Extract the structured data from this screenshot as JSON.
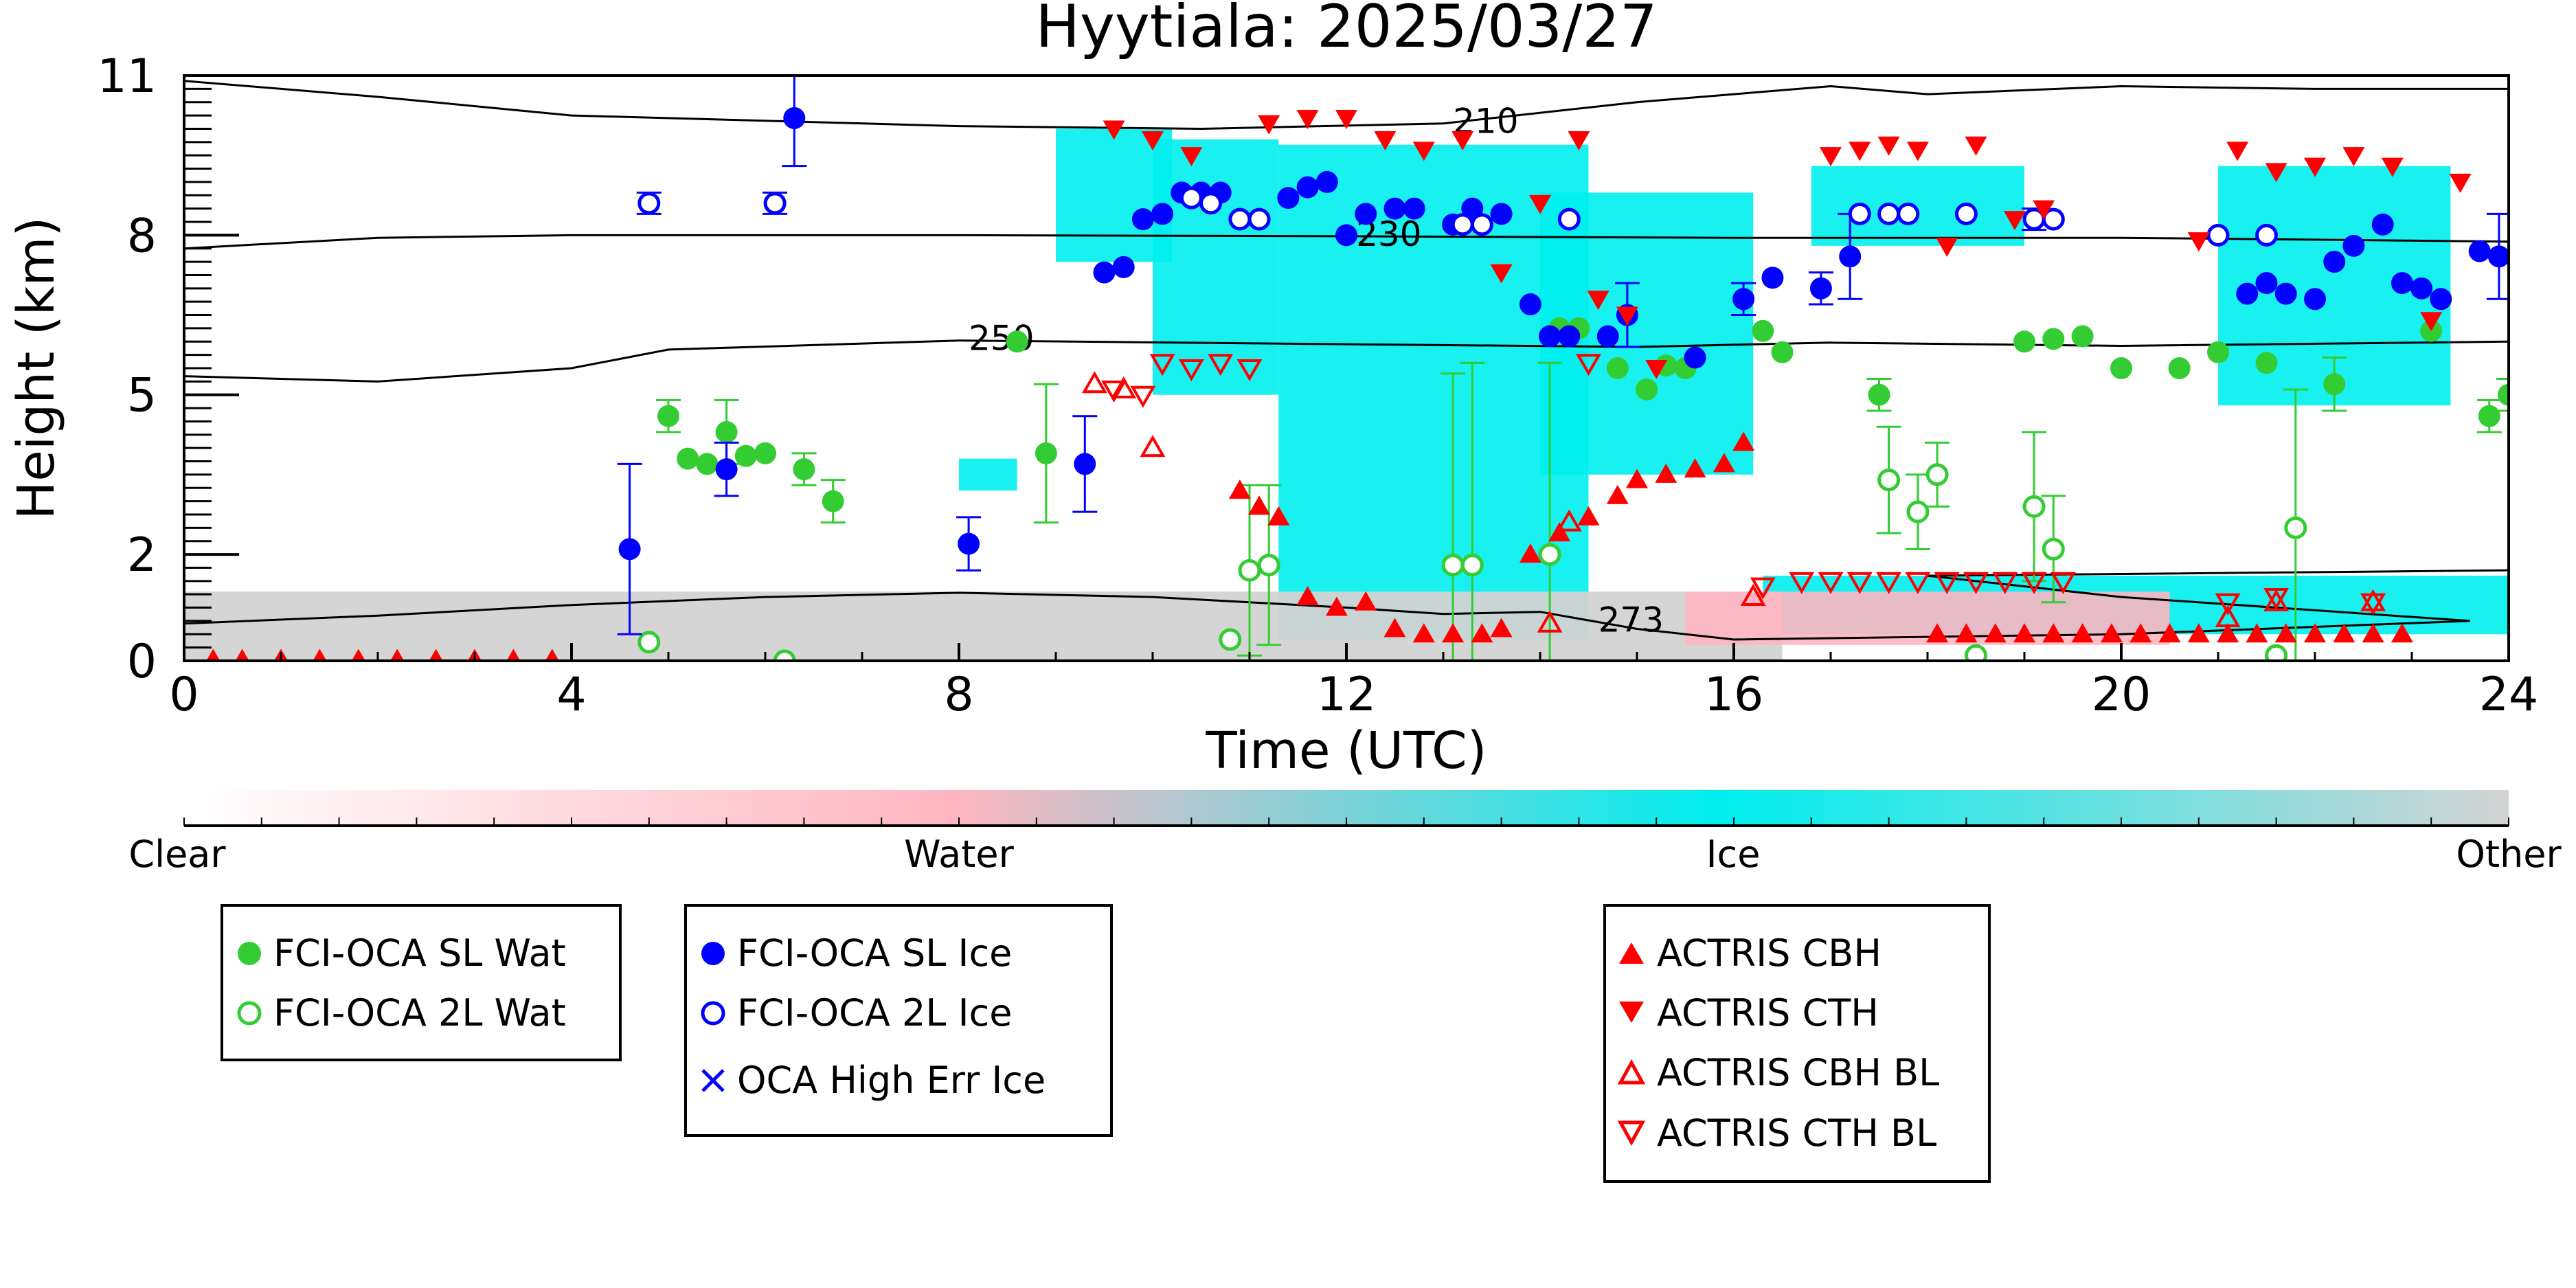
{
  "chart_data": {
    "type": "scatter",
    "title": "Hyytiala: 2025/03/27",
    "xlabel": "Time (UTC)",
    "ylabel": "Height (km)",
    "xlim": [
      0,
      24
    ],
    "ylim": [
      0,
      11
    ],
    "xticks": [
      0,
      4,
      8,
      12,
      16,
      20,
      24
    ],
    "yticks": [
      0,
      2,
      5,
      8,
      11
    ],
    "ytick_labels": [
      "0",
      "2",
      "5",
      "8",
      "11"
    ],
    "grid": false,
    "background_classes": {
      "categories": [
        "Clear",
        "Water",
        "Ice",
        "Other"
      ],
      "colors": {
        "Clear": "#ffffff",
        "Water": "#ffb6c1",
        "Ice": "#00eeee",
        "Other": "#d3d3d3"
      },
      "regions": [
        {
          "class": "Ice",
          "x": [
            9.0,
            10.2
          ],
          "y": [
            7.5,
            10.0
          ]
        },
        {
          "class": "Ice",
          "x": [
            10.0,
            11.3
          ],
          "y": [
            5.0,
            9.8
          ]
        },
        {
          "class": "Ice",
          "x": [
            11.3,
            14.5
          ],
          "y": [
            0.4,
            9.7
          ]
        },
        {
          "class": "Ice",
          "x": [
            14.0,
            16.2
          ],
          "y": [
            3.5,
            8.8
          ]
        },
        {
          "class": "Ice",
          "x": [
            16.8,
            19.0
          ],
          "y": [
            7.8,
            9.3
          ]
        },
        {
          "class": "Ice",
          "x": [
            21.0,
            23.4
          ],
          "y": [
            4.8,
            9.3
          ]
        },
        {
          "class": "Ice",
          "x": [
            16.3,
            24.0
          ],
          "y": [
            0.5,
            1.6
          ]
        },
        {
          "class": "Ice",
          "x": [
            8.0,
            8.6
          ],
          "y": [
            3.2,
            3.8
          ]
        },
        {
          "class": "Other",
          "x": [
            0.0,
            16.5
          ],
          "y": [
            0.0,
            1.3
          ]
        },
        {
          "class": "Water",
          "x": [
            15.5,
            20.5
          ],
          "y": [
            0.3,
            1.3
          ]
        }
      ]
    },
    "contours": [
      {
        "label": "210",
        "points": [
          [
            0,
            10.9
          ],
          [
            2,
            10.6
          ],
          [
            4,
            10.25
          ],
          [
            8,
            10.05
          ],
          [
            10.5,
            10.0
          ],
          [
            13,
            10.1
          ],
          [
            15,
            10.5
          ],
          [
            17,
            10.8
          ],
          [
            18,
            10.65
          ],
          [
            20,
            10.8
          ],
          [
            22,
            10.75
          ],
          [
            24,
            10.75
          ]
        ]
      },
      {
        "label": "230",
        "points": [
          [
            0,
            7.75
          ],
          [
            2,
            7.95
          ],
          [
            4,
            8.0
          ],
          [
            8,
            8.0
          ],
          [
            12,
            7.98
          ],
          [
            16,
            7.95
          ],
          [
            20,
            7.95
          ],
          [
            24,
            7.88
          ]
        ]
      },
      {
        "label": "250",
        "points": [
          [
            0,
            5.35
          ],
          [
            2,
            5.25
          ],
          [
            4,
            5.5
          ],
          [
            5,
            5.85
          ],
          [
            8,
            6.02
          ],
          [
            12,
            5.95
          ],
          [
            15,
            5.9
          ],
          [
            17,
            5.98
          ],
          [
            20,
            5.92
          ],
          [
            24,
            6.0
          ]
        ]
      },
      {
        "label": "273",
        "points": [
          [
            0,
            0.7
          ],
          [
            2,
            0.85
          ],
          [
            4,
            1.05
          ],
          [
            6,
            1.2
          ],
          [
            8,
            1.28
          ],
          [
            10,
            1.2
          ],
          [
            12,
            1.0
          ],
          [
            13,
            0.88
          ],
          [
            14,
            0.92
          ],
          [
            15,
            0.6
          ],
          [
            16,
            0.4
          ],
          [
            18,
            0.45
          ],
          [
            20,
            0.5
          ],
          [
            23.6,
            0.75
          ],
          [
            22,
            0.95
          ],
          [
            20,
            1.2
          ],
          [
            18,
            1.6
          ],
          [
            24,
            1.7
          ]
        ]
      }
    ],
    "series": [
      {
        "name": "FCI-OCA SL Wat",
        "marker": "circle-filled",
        "color": "#33cc33",
        "x": [
          5.0,
          5.2,
          5.4,
          5.6,
          5.8,
          6.0,
          6.4,
          6.7,
          8.6,
          8.9,
          14.2,
          14.4,
          14.8,
          15.1,
          15.3,
          15.5,
          16.3,
          16.5,
          17.5,
          19.0,
          19.3,
          19.6,
          20.0,
          20.6,
          21.0,
          21.5,
          22.2,
          23.2,
          23.8,
          24.0
        ],
        "y": [
          4.6,
          3.8,
          3.7,
          4.3,
          3.85,
          3.9,
          3.6,
          3.0,
          6.0,
          3.9,
          6.25,
          6.25,
          5.5,
          5.1,
          5.55,
          5.5,
          6.2,
          5.8,
          5.0,
          6.0,
          6.05,
          6.1,
          5.5,
          5.5,
          5.8,
          5.6,
          5.2,
          6.2,
          4.6,
          5.0
        ],
        "yerr": [
          0.3,
          0.0,
          0.0,
          0.6,
          0.0,
          0.0,
          0.3,
          0.4,
          0.0,
          1.3,
          0.0,
          0.0,
          0.0,
          0.0,
          0.0,
          0.0,
          0.0,
          0.0,
          0.3,
          0.0,
          0.0,
          0.0,
          0.0,
          0.0,
          0.0,
          0.0,
          0.5,
          0.0,
          0.3,
          0.3
        ]
      },
      {
        "name": "FCI-OCA 2L Wat",
        "marker": "circle-open",
        "color": "#33cc33",
        "x": [
          4.8,
          6.2,
          10.8,
          11.0,
          11.2,
          13.1,
          13.3,
          14.1,
          17.6,
          17.9,
          18.1,
          18.5,
          19.1,
          19.3,
          21.6,
          21.8
        ],
        "y": [
          0.35,
          0.0,
          0.4,
          1.7,
          1.8,
          1.8,
          1.8,
          2.0,
          3.4,
          2.8,
          3.5,
          0.1,
          2.9,
          2.1,
          0.1,
          2.5
        ],
        "yerr": [
          0.0,
          0.0,
          0.0,
          1.6,
          1.5,
          3.6,
          3.8,
          3.6,
          1.0,
          0.7,
          0.6,
          0.0,
          1.4,
          1.0,
          0.0,
          2.6
        ]
      },
      {
        "name": "FCI-OCA SL Ice",
        "marker": "circle-filled",
        "color": "#0000ff",
        "x": [
          4.6,
          5.6,
          6.3,
          8.1,
          9.3,
          9.5,
          9.7,
          9.9,
          10.1,
          10.3,
          10.5,
          10.7,
          11.4,
          11.6,
          11.8,
          12.0,
          12.2,
          12.5,
          12.7,
          13.1,
          13.3,
          13.6,
          13.9,
          14.1,
          14.3,
          14.7,
          14.9,
          15.6,
          16.1,
          16.4,
          16.9,
          17.2,
          21.3,
          21.5,
          21.7,
          22.0,
          22.2,
          22.4,
          22.7,
          22.9,
          23.1,
          23.3,
          23.7,
          23.9
        ],
        "y": [
          2.1,
          3.6,
          10.2,
          2.2,
          3.7,
          7.3,
          7.4,
          8.3,
          8.4,
          8.8,
          8.8,
          8.8,
          8.7,
          8.9,
          9.0,
          8.0,
          8.4,
          8.5,
          8.5,
          8.2,
          8.5,
          8.4,
          6.7,
          6.1,
          6.1,
          6.1,
          6.5,
          5.7,
          6.8,
          7.2,
          7.0,
          7.6,
          6.9,
          7.1,
          6.9,
          6.8,
          7.5,
          7.8,
          8.2,
          7.1,
          7.0,
          6.8,
          7.7,
          7.6
        ],
        "yerr": [
          1.6,
          0.5,
          0.9,
          0.5,
          0.9,
          0.0,
          0.0,
          0.0,
          0.0,
          0.0,
          0.0,
          0.0,
          0.0,
          0.0,
          0.0,
          0.0,
          0.0,
          0.0,
          0.0,
          0.0,
          0.0,
          0.0,
          0.0,
          0.0,
          0.0,
          0.0,
          0.6,
          0.0,
          0.3,
          0.0,
          0.3,
          0.8,
          0.0,
          0.0,
          0.0,
          0.0,
          0.0,
          0.0,
          0.0,
          0.0,
          0.0,
          0.0,
          0.0,
          0.8
        ]
      },
      {
        "name": "FCI-OCA 2L Ice",
        "marker": "circle-open",
        "color": "#0000ff",
        "x": [
          4.8,
          6.1,
          10.4,
          10.6,
          10.9,
          11.1,
          13.2,
          13.4,
          14.3,
          17.3,
          17.6,
          17.8,
          18.4,
          19.1,
          19.3,
          21.0,
          21.5
        ],
        "y": [
          8.6,
          8.6,
          8.7,
          8.6,
          8.3,
          8.3,
          8.2,
          8.2,
          8.3,
          8.4,
          8.4,
          8.4,
          8.4,
          8.3,
          8.3,
          8.0,
          8.0
        ],
        "yerr": [
          0.2,
          0.2,
          0.0,
          0.0,
          0.0,
          0.0,
          0.0,
          0.0,
          0.0,
          0.0,
          0.0,
          0.0,
          0.0,
          0.2,
          0.0,
          0.0,
          0.0
        ]
      },
      {
        "name": "OCA High Err Ice",
        "marker": "x",
        "color": "#0000ff",
        "x": [],
        "y": []
      },
      {
        "name": "ACTRIS CBH",
        "marker": "triangle-up-filled",
        "color": "#ff0000",
        "x": [
          0.3,
          0.6,
          1.0,
          1.4,
          1.8,
          2.2,
          2.6,
          3.0,
          3.4,
          3.8,
          10.9,
          11.1,
          11.3,
          11.6,
          11.9,
          12.2,
          12.5,
          12.8,
          13.1,
          13.4,
          13.6,
          13.9,
          14.2,
          14.5,
          14.8,
          15.0,
          15.3,
          15.6,
          15.9,
          16.1,
          18.1,
          18.4,
          18.7,
          19.0,
          19.3,
          19.6,
          19.9,
          20.2,
          20.5,
          20.8,
          21.1,
          21.4,
          21.7,
          22.0,
          22.3,
          22.6,
          22.9
        ],
        "y": [
          0.02,
          0.02,
          0.02,
          0.02,
          0.02,
          0.02,
          0.02,
          0.02,
          0.02,
          0.02,
          3.2,
          2.9,
          2.7,
          1.2,
          1.0,
          1.1,
          0.6,
          0.5,
          0.5,
          0.5,
          0.6,
          2.0,
          2.4,
          2.7,
          3.1,
          3.4,
          3.5,
          3.6,
          3.7,
          4.1,
          0.5,
          0.5,
          0.5,
          0.5,
          0.5,
          0.5,
          0.5,
          0.5,
          0.5,
          0.5,
          0.5,
          0.5,
          0.5,
          0.5,
          0.5,
          0.5,
          0.5
        ]
      },
      {
        "name": "ACTRIS CTH",
        "marker": "triangle-down-filled",
        "color": "#ff0000",
        "x": [
          9.6,
          10.0,
          10.4,
          11.2,
          11.6,
          12.0,
          12.4,
          12.8,
          13.2,
          13.6,
          14.0,
          14.4,
          14.6,
          14.9,
          15.2,
          17.0,
          17.3,
          17.6,
          17.9,
          18.2,
          18.5,
          18.9,
          19.2,
          20.8,
          21.2,
          21.6,
          22.0,
          22.4,
          22.8,
          23.2,
          23.5
        ],
        "y": [
          10.0,
          9.8,
          9.5,
          10.1,
          10.2,
          10.2,
          9.8,
          9.6,
          9.8,
          7.3,
          8.6,
          9.8,
          6.8,
          6.5,
          5.5,
          9.5,
          9.6,
          9.7,
          9.6,
          7.8,
          9.7,
          8.3,
          8.5,
          7.9,
          9.6,
          9.2,
          9.3,
          9.5,
          9.3,
          6.4,
          9.0
        ],
        "note": ""
      },
      {
        "name": "ACTRIS CBH BL",
        "marker": "triangle-up-open",
        "color": "#ff0000",
        "x": [
          9.4,
          9.7,
          10.0,
          14.1,
          14.3,
          16.2,
          21.1,
          21.6,
          22.6
        ],
        "y": [
          5.2,
          5.1,
          4.0,
          0.7,
          2.6,
          1.2,
          0.8,
          1.1,
          1.1
        ]
      },
      {
        "name": "ACTRIS CTH BL",
        "marker": "triangle-down-open",
        "color": "#ff0000",
        "x": [
          9.6,
          9.9,
          10.1,
          10.4,
          10.7,
          11.0,
          14.5,
          16.3,
          16.7,
          17.0,
          17.3,
          17.6,
          17.9,
          18.2,
          18.5,
          18.8,
          19.1,
          19.4,
          21.1,
          21.6,
          22.6
        ],
        "y": [
          5.1,
          5.0,
          5.6,
          5.5,
          5.6,
          5.5,
          5.6,
          1.4,
          1.5,
          1.5,
          1.5,
          1.5,
          1.5,
          1.5,
          1.5,
          1.5,
          1.5,
          1.5,
          1.1,
          1.2,
          1.1
        ]
      }
    ],
    "colorbar": {
      "labels": [
        "Clear",
        "Water",
        "Ice",
        "Other"
      ],
      "stops": [
        "#ffffff",
        "#ffb6c1",
        "#00eeee",
        "#d3d3d3"
      ]
    },
    "legends": [
      [
        "FCI-OCA SL Wat",
        "FCI-OCA 2L Wat"
      ],
      [
        "FCI-OCA SL Ice",
        "FCI-OCA 2L Ice",
        "OCA High Err Ice"
      ],
      [
        "ACTRIS CBH",
        "ACTRIS CTH",
        "ACTRIS CBH BL",
        "ACTRIS CTH BL"
      ]
    ]
  }
}
